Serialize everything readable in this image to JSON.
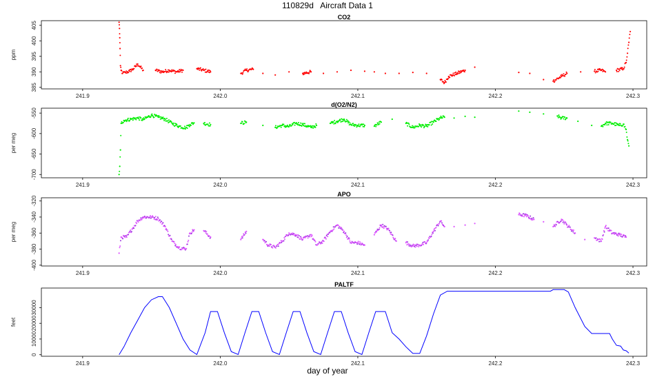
{
  "figure": {
    "title": "110829d   Aircraft Data 1",
    "xlabel": "day of year"
  },
  "chart_data": [
    {
      "type": "scatter",
      "title": "CO2",
      "ylabel": "ppm",
      "color": "#ff0000",
      "xlim": [
        241.87,
        242.31
      ],
      "ylim": [
        384.5,
        406.5
      ],
      "xticks": [
        241.9,
        242.0,
        242.1,
        242.2,
        242.3
      ],
      "xtick_labels": [
        "241.9",
        "242.0",
        "242.1",
        "242.2",
        "242.3"
      ],
      "yticks": [
        385,
        390,
        395,
        400,
        405
      ],
      "ytick_labels": [
        "385",
        "390",
        "395",
        "400",
        "405"
      ],
      "x": [
        241.9265,
        241.9268,
        241.927,
        241.9272,
        241.9275,
        241.928,
        241.929,
        241.931,
        241.934,
        241.937,
        241.94,
        241.942,
        241.944,
        241.953,
        241.958,
        241.963,
        241.968,
        241.973,
        241.983,
        241.988,
        241.993,
        242.015,
        242.019,
        242.024,
        242.031,
        242.04,
        242.05,
        242.06,
        242.066,
        242.075,
        242.085,
        242.095,
        242.105,
        242.112,
        242.12,
        242.13,
        242.14,
        242.15,
        242.16,
        242.163,
        242.166,
        242.172,
        242.178,
        242.185,
        242.217,
        242.225,
        242.235,
        242.242,
        242.248,
        242.252,
        242.262,
        242.272,
        242.277,
        242.28,
        242.288,
        242.293,
        242.295,
        242.296,
        242.297,
        242.298
      ],
      "y": [
        406,
        404,
        401,
        397.5,
        392,
        390.5,
        389.5,
        389.8,
        390.2,
        391,
        392.5,
        391.5,
        390.5,
        390.5,
        390,
        390.5,
        390,
        390.5,
        391,
        390.5,
        390,
        389.5,
        390.5,
        390.8,
        389.5,
        389,
        390,
        389.5,
        390,
        389.5,
        390,
        390.5,
        390.2,
        390,
        389.5,
        389.5,
        389.8,
        389.5,
        387.5,
        386.5,
        388.5,
        389.5,
        390.5,
        391.5,
        389.8,
        389.5,
        387.5,
        387,
        388.5,
        389.5,
        390,
        390.2,
        390.5,
        390,
        390.5,
        391,
        393,
        396,
        399.5,
        403
      ]
    },
    {
      "type": "scatter",
      "title": "d(O2/N2)",
      "ylabel": "per meg",
      "color": "#00ee00",
      "xlim": [
        241.87,
        242.31
      ],
      "ylim": [
        -708,
        -538
      ],
      "xticks": [
        241.9,
        242.0,
        242.1,
        242.2,
        242.3
      ],
      "xtick_labels": [
        "241.9",
        "242.0",
        "242.1",
        "242.2",
        "242.3"
      ],
      "yticks": [
        -700,
        -650,
        -600,
        -550
      ],
      "ytick_labels": [
        "-700",
        "-650",
        "-600",
        "-550"
      ],
      "x": [
        241.9265,
        241.927,
        241.9275,
        241.928,
        241.93,
        241.935,
        241.94,
        241.944,
        241.95,
        241.955,
        241.96,
        241.965,
        241.97,
        241.975,
        241.978,
        241.981,
        241.988,
        241.993,
        242.015,
        242.019,
        242.031,
        242.04,
        242.045,
        242.05,
        242.055,
        242.06,
        242.066,
        242.07,
        242.08,
        242.085,
        242.09,
        242.095,
        242.1,
        242.105,
        242.112,
        242.117,
        242.125,
        242.135,
        242.14,
        242.145,
        242.15,
        242.155,
        242.16,
        242.163,
        242.17,
        242.178,
        242.185,
        242.217,
        242.225,
        242.235,
        242.245,
        242.248,
        242.252,
        242.26,
        242.27,
        242.277,
        242.28,
        242.285,
        242.29,
        242.293,
        242.295,
        242.296,
        242.297
      ],
      "y": [
        -700,
        -680,
        -640,
        -575,
        -568,
        -565,
        -562,
        -566,
        -555,
        -560,
        -565,
        -575,
        -582,
        -586,
        -578,
        -574,
        -575,
        -578,
        -575,
        -572,
        -580,
        -585,
        -580,
        -583,
        -575,
        -578,
        -585,
        -580,
        -575,
        -570,
        -565,
        -578,
        -580,
        -580,
        -582,
        -572,
        -565,
        -575,
        -585,
        -580,
        -582,
        -572,
        -562,
        -560,
        -562,
        -558,
        -560,
        -545,
        -548,
        -552,
        -557,
        -562,
        -562,
        -570,
        -580,
        -582,
        -575,
        -575,
        -580,
        -577,
        -590,
        -615,
        -630
      ]
    },
    {
      "type": "scatter",
      "title": "APO",
      "ylabel": "per meg",
      "color": "#dd55ff",
      "point_color": "#9933dd",
      "xlim": [
        241.87,
        242.31
      ],
      "ylim": [
        -401,
        -316
      ],
      "xticks": [
        241.9,
        242.0,
        242.1,
        242.2,
        242.3
      ],
      "xtick_labels": [
        "241.9",
        "242.0",
        "242.1",
        "242.2",
        "242.3"
      ],
      "yticks": [
        -400,
        -380,
        -360,
        -340,
        -320
      ],
      "ytick_labels": [
        "-400",
        "-380",
        "-360",
        "-340",
        "-320"
      ],
      "x": [
        241.9265,
        241.928,
        241.932,
        241.936,
        241.94,
        241.944,
        241.95,
        241.955,
        241.96,
        241.965,
        241.97,
        241.975,
        241.978,
        241.981,
        241.988,
        241.993,
        242.015,
        242.019,
        242.031,
        242.035,
        242.04,
        242.045,
        242.05,
        242.055,
        242.06,
        242.066,
        242.07,
        242.075,
        242.08,
        242.085,
        242.09,
        242.095,
        242.1,
        242.105,
        242.112,
        242.117,
        242.122,
        242.128,
        242.135,
        242.14,
        242.145,
        242.15,
        242.155,
        242.16,
        242.163,
        242.17,
        242.178,
        242.185,
        242.217,
        242.222,
        242.228,
        242.235,
        242.242,
        242.248,
        242.252,
        242.258,
        242.265,
        242.272,
        242.277,
        242.28,
        242.285,
        242.29,
        242.295
      ],
      "y": [
        -385,
        -365,
        -365,
        -355,
        -345,
        -340,
        -340,
        -342,
        -352,
        -370,
        -378,
        -380,
        -360,
        -356,
        -357,
        -365,
        -368,
        -358,
        -368,
        -375,
        -378,
        -370,
        -360,
        -362,
        -368,
        -362,
        -375,
        -370,
        -358,
        -350,
        -358,
        -372,
        -372,
        -375,
        -362,
        -350,
        -355,
        -370,
        -372,
        -376,
        -375,
        -372,
        -358,
        -345,
        -352,
        -352,
        -350,
        -348,
        -337,
        -338,
        -343,
        -346,
        -352,
        -343,
        -350,
        -360,
        -368,
        -366,
        -370,
        -352,
        -360,
        -362,
        -365
      ]
    },
    {
      "type": "line",
      "title": "PALTF",
      "ylabel": "feet",
      "color": "#0000ff",
      "xlim": [
        241.87,
        242.31
      ],
      "ylim": [
        -1000,
        42500
      ],
      "xticks": [
        241.9,
        242.0,
        242.1,
        242.2,
        242.3
      ],
      "xtick_labels": [
        "241.9",
        "242.0",
        "242.1",
        "242.2",
        "242.3"
      ],
      "yticks": [
        0,
        10000,
        20000,
        30000
      ],
      "ytick_labels": [
        "0",
        "10000",
        "20000",
        "30000"
      ],
      "x": [
        241.9265,
        241.93,
        241.935,
        241.94,
        241.945,
        241.95,
        241.955,
        241.958,
        241.963,
        241.968,
        241.973,
        241.978,
        241.983,
        241.989,
        241.993,
        241.998,
        242.003,
        242.008,
        242.013,
        242.018,
        242.023,
        242.028,
        242.033,
        242.038,
        242.043,
        242.048,
        242.053,
        242.058,
        242.063,
        242.068,
        242.073,
        242.078,
        242.083,
        242.088,
        242.093,
        242.098,
        242.103,
        242.108,
        242.113,
        242.12,
        242.125,
        242.13,
        242.135,
        242.14,
        242.145,
        242.15,
        242.155,
        242.16,
        242.165,
        242.175,
        242.2,
        242.22,
        242.24,
        242.242,
        242.25,
        242.253,
        242.258,
        242.265,
        242.27,
        242.28,
        242.283,
        242.285,
        242.288,
        242.291,
        242.293,
        242.295,
        242.297
      ],
      "y": [
        0,
        5000,
        14000,
        22000,
        30000,
        35000,
        37000,
        37000,
        30000,
        20000,
        10000,
        3000,
        100,
        14000,
        27500,
        27500,
        14000,
        2000,
        100,
        14000,
        27500,
        27500,
        14000,
        2000,
        100,
        14000,
        27500,
        27500,
        14000,
        2000,
        100,
        14000,
        27500,
        27500,
        14000,
        2000,
        100,
        14000,
        27500,
        27500,
        14000,
        10000,
        5000,
        800,
        800,
        12000,
        26000,
        38000,
        40500,
        40500,
        40500,
        40500,
        40500,
        41500,
        41500,
        40000,
        30000,
        18000,
        13500,
        13500,
        13500,
        10000,
        6000,
        5500,
        3000,
        2500,
        1000
      ]
    }
  ]
}
